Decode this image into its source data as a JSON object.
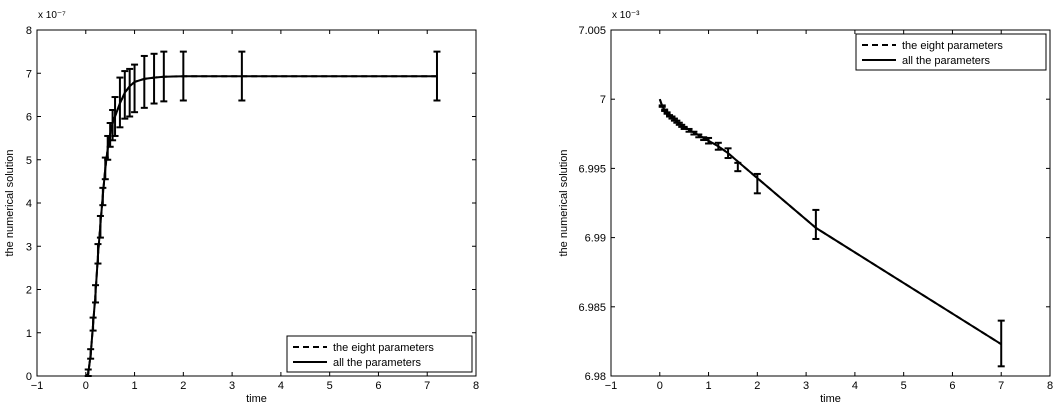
{
  "chart_data": [
    {
      "type": "line",
      "xlabel": "time",
      "ylabel": "the numerical solution",
      "y_exponent": "x 10⁻⁷",
      "xlim": [
        -1,
        8
      ],
      "ylim": [
        0,
        8
      ],
      "xticks": [
        "−1",
        "0",
        "1",
        "2",
        "3",
        "4",
        "5",
        "6",
        "7",
        "8"
      ],
      "yticks": [
        "0",
        "1",
        "2",
        "3",
        "4",
        "5",
        "6",
        "7",
        "8"
      ],
      "legend_position": "bottom-right",
      "grid": false,
      "series": [
        {
          "name": "the eight parameters",
          "style": "dashed",
          "x": [
            0,
            0.05,
            0.1,
            0.15,
            0.2,
            0.25,
            0.3,
            0.35,
            0.4,
            0.45,
            0.5,
            0.55,
            0.6,
            0.7,
            0.8,
            0.9,
            1.0,
            1.2,
            1.4,
            1.6,
            2.0,
            3.2,
            7.2
          ],
          "y": [
            0,
            0.05,
            0.5,
            1.2,
            1.9,
            2.8,
            3.5,
            4.2,
            4.8,
            5.25,
            5.6,
            5.85,
            6.0,
            6.3,
            6.55,
            6.7,
            6.8,
            6.87,
            6.9,
            6.92,
            6.93,
            6.93,
            6.93
          ]
        },
        {
          "name": "all the parameters",
          "style": "solid",
          "x": [
            0,
            0.05,
            0.1,
            0.15,
            0.2,
            0.25,
            0.3,
            0.35,
            0.4,
            0.45,
            0.5,
            0.55,
            0.6,
            0.7,
            0.8,
            0.9,
            1.0,
            1.2,
            1.4,
            1.6,
            2.0,
            3.2,
            7.2
          ],
          "y": [
            0,
            0.05,
            0.5,
            1.2,
            1.9,
            2.8,
            3.5,
            4.2,
            4.8,
            5.25,
            5.6,
            5.85,
            6.0,
            6.3,
            6.55,
            6.7,
            6.8,
            6.87,
            6.9,
            6.92,
            6.93,
            6.93,
            6.93
          ]
        }
      ],
      "error_bars": {
        "x": [
          0.05,
          0.1,
          0.15,
          0.2,
          0.25,
          0.3,
          0.35,
          0.4,
          0.45,
          0.5,
          0.55,
          0.6,
          0.7,
          0.8,
          0.9,
          1.0,
          1.2,
          1.4,
          1.6,
          2.0,
          3.2,
          7.2
        ],
        "low": [
          0.0,
          0.4,
          1.05,
          1.7,
          2.6,
          3.2,
          3.95,
          4.55,
          5.0,
          5.3,
          5.45,
          5.55,
          5.75,
          5.95,
          6.0,
          6.1,
          6.2,
          6.3,
          6.35,
          6.37,
          6.37,
          6.37
        ],
        "high": [
          0.15,
          0.62,
          1.35,
          2.1,
          3.05,
          3.7,
          4.35,
          5.05,
          5.55,
          5.85,
          6.15,
          6.45,
          6.9,
          7.05,
          7.1,
          7.2,
          7.4,
          7.45,
          7.5,
          7.5,
          7.5,
          7.5
        ]
      }
    },
    {
      "type": "line",
      "xlabel": "time",
      "ylabel": "the numerical solution",
      "y_exponent": "x 10⁻³",
      "xlim": [
        -1,
        8
      ],
      "ylim": [
        6.98,
        7.005
      ],
      "xticks": [
        "−1",
        "0",
        "1",
        "2",
        "3",
        "4",
        "5",
        "6",
        "7",
        "8"
      ],
      "yticks": [
        "6.98",
        "6.985",
        "6.99",
        "6.995",
        "7",
        "7.005"
      ],
      "legend_position": "top-right",
      "grid": false,
      "series": [
        {
          "name": "the eight parameters",
          "style": "dashed",
          "x": [
            0,
            0.05,
            0.1,
            0.15,
            0.2,
            0.3,
            0.4,
            0.5,
            0.6,
            0.7,
            0.8,
            0.9,
            1.0,
            1.2,
            1.4,
            1.6,
            2.0,
            3.2,
            7.0
          ],
          "y": [
            7.0,
            6.9995,
            6.9992,
            6.999,
            6.9988,
            6.9985,
            6.9982,
            6.998,
            6.9978,
            6.9976,
            6.9974,
            6.9972,
            6.997,
            6.9966,
            6.9961,
            6.9955,
            6.9943,
            6.9907,
            6.9823
          ]
        },
        {
          "name": "all the parameters",
          "style": "solid",
          "x": [
            0,
            0.05,
            0.1,
            0.15,
            0.2,
            0.3,
            0.4,
            0.5,
            0.6,
            0.7,
            0.8,
            0.9,
            1.0,
            1.2,
            1.4,
            1.6,
            2.0,
            3.2,
            7.0
          ],
          "y": [
            7.0,
            6.9995,
            6.9992,
            6.999,
            6.9988,
            6.9985,
            6.9982,
            6.998,
            6.9978,
            6.9976,
            6.9974,
            6.9972,
            6.997,
            6.9966,
            6.9961,
            6.9955,
            6.9943,
            6.9907,
            6.9823
          ]
        }
      ],
      "error_bars": {
        "x": [
          0.05,
          0.1,
          0.15,
          0.2,
          0.25,
          0.3,
          0.35,
          0.4,
          0.45,
          0.5,
          0.6,
          0.7,
          0.8,
          0.9,
          1.0,
          1.2,
          1.4,
          1.6,
          2.0,
          3.2,
          7.0
        ],
        "low": [
          6.99945,
          6.99915,
          6.99895,
          6.99875,
          6.9986,
          6.99845,
          6.9983,
          6.99815,
          6.998,
          6.99785,
          6.99765,
          6.99745,
          6.99725,
          6.99705,
          6.9968,
          6.99635,
          6.99575,
          6.9948,
          6.9932,
          6.9899,
          6.9807
        ],
        "high": [
          6.99955,
          6.99925,
          6.99905,
          6.99885,
          6.99875,
          6.9986,
          6.99845,
          6.9983,
          6.99815,
          6.998,
          6.99785,
          6.99765,
          6.99745,
          6.99725,
          6.9972,
          6.99685,
          6.99645,
          6.9954,
          6.9946,
          6.992,
          6.984
        ]
      }
    }
  ]
}
